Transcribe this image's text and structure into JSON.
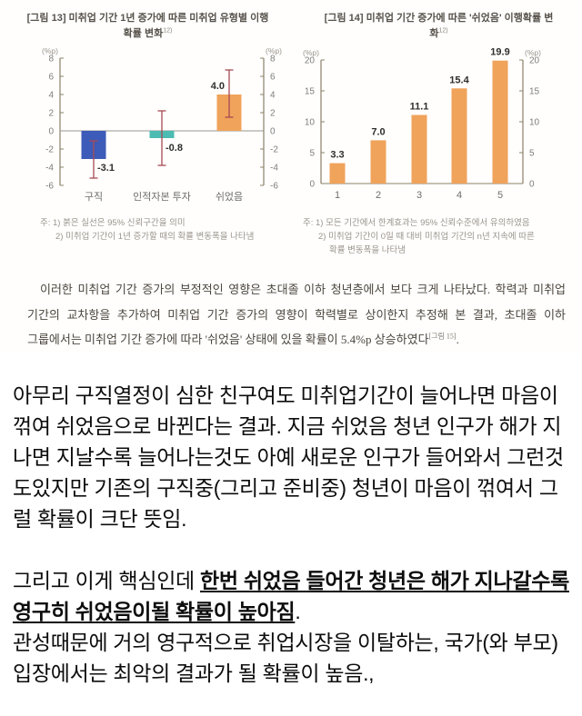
{
  "chart_data": [
    {
      "type": "bar",
      "title": "[그림 13] 미취업 기간 1년 증가에 따른 미취업 유형별 이행확률 변화",
      "title_superscript": "12)",
      "unit": "(%p)",
      "categories": [
        "구직",
        "인적자본 투자",
        "쉬었음"
      ],
      "values": [
        -3.1,
        -0.8,
        4.0
      ],
      "value_labels": [
        "-3.1",
        "-0.8",
        "4.0"
      ],
      "ci_low": [
        -5.2,
        -3.8,
        1.5
      ],
      "ci_high": [
        -1.1,
        2.2,
        6.7
      ],
      "bar_colors": [
        "#3d5bb8",
        "#4cbcb2",
        "#f0a35b"
      ],
      "ci_color": "#a84a52",
      "ylim": [
        -6,
        8
      ],
      "yticks": [
        8,
        6,
        4,
        2,
        0,
        -2,
        -4,
        -6
      ],
      "legend": "none",
      "grid": false,
      "notes": [
        "주: 1) 붉은 실선은 95% 신뢰구간을 의미",
        "2) 미취업 기간이 1년 증가할 때의 확률 변동폭을 나타냄"
      ]
    },
    {
      "type": "bar",
      "title": "[그림 14] 미취업 기간 증가에 따른 '쉬었음' 이행확률 변화",
      "title_superscript": "12)",
      "unit": "(%p)",
      "categories": [
        "1",
        "2",
        "3",
        "4",
        "5"
      ],
      "values": [
        3.3,
        7.0,
        11.1,
        15.4,
        19.9
      ],
      "value_labels": [
        "3.3",
        "7.0",
        "11.1",
        "15.4",
        "19.9"
      ],
      "bar_colors": [
        "#f0a35b",
        "#f0a35b",
        "#f0a35b",
        "#f0a35b",
        "#f0a35b"
      ],
      "ylim": [
        0,
        20
      ],
      "yticks": [
        0,
        5,
        10,
        15,
        20
      ],
      "legend": "none",
      "grid": false,
      "notes": [
        "주: 1) 모든 기간에서 한계효과는 95% 신뢰수준에서 유의하였음",
        "2) 미취업 기간이 0일 때 대비 미취업 기간의 n년 지속에 따른",
        "확률 변동폭을 나타냄"
      ]
    }
  ],
  "report_paragraph": {
    "text": "이러한 미취업 기간 증가의 부정적인 영향은 초대졸 이하 청년층에서 보다 크게 나타났다. 학력과 미취업 기간의 교차항을 추가하여 미취업 기간 증가의 영향이 학력별로 상이한지 추정해 본 결과, 초대졸 이하 그룹에서는 미취업 기간 증가에 따라 '쉬었음' 상태에 있을 확률이 5.4%p 상승하였다",
    "sup": "[그림 15]",
    "tail": "."
  },
  "commentary": {
    "p1": "아무리 구직열정이 심한 친구여도 미취업기간이 늘어나면 마음이 꺾여 쉬었음으로 바뀐다는 결과. 지금 쉬었음 청년 인구가 해가 지나면 지날수록 늘어나는것도 아예 새로운 인구가 들어와서 그런것도있지만 기존의 구직중(그리고 준비중) 청년이 마음이 꺾여서 그럴 확률이 크단 뜻임.",
    "p2_prefix": "그리고 이게 핵심인데 ",
    "p2_key": "한번 쉬었음 들어간 청년은 해가 지나갈수록 영구히 쉬었음이될 확률이 높아짐",
    "p2_tail": ".",
    "p3": "관성때문에 거의 영구적으로 취업시장을 이탈하는, 국가(와 부모) 입장에서는 최악의 결과가 될 확률이 높음.,"
  },
  "colors": {
    "bar_blue": "#3d5bb8",
    "bar_teal": "#4cbcb2",
    "bar_orange": "#f0a35b",
    "ci_red": "#a84a52",
    "axis": "#8b8168",
    "tick_text": "#7d7d7d"
  }
}
